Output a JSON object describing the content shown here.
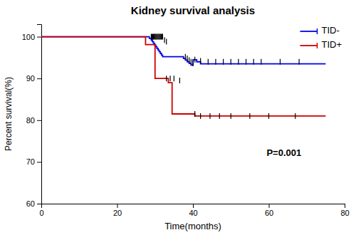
{
  "chart_data": {
    "type": "step",
    "title": "Kidney survival analysis",
    "x_label": "Time(months)",
    "y_label": "Percent survival(%)",
    "xlim": [
      0,
      80
    ],
    "ylim": [
      60,
      103
    ],
    "xticks": [
      0,
      20,
      40,
      60,
      80
    ],
    "yticks": [
      60,
      70,
      80,
      90,
      100
    ],
    "grid": false,
    "legend": "upper right",
    "censor_color": "#000000",
    "series": [
      {
        "name": "TID-",
        "color": "#0000ee",
        "x": [
          0,
          28.5,
          28.5,
          29.0,
          29.0,
          29.3,
          29.3,
          29.6,
          29.6,
          29.9,
          29.9,
          30.2,
          30.2,
          30.5,
          30.5,
          30.8,
          30.8,
          31.1,
          31.1,
          31.4,
          31.4,
          31.7,
          31.7,
          32.0,
          32.0,
          37.5,
          37.5,
          38.0,
          38.0,
          38.5,
          38.5,
          39.0,
          39.0,
          39.5,
          39.5,
          40.0,
          40.0,
          41.0,
          41.0,
          42.0,
          42.0,
          75
        ],
        "values": [
          100,
          100,
          99.6,
          99.6,
          99.2,
          99.2,
          98.8,
          98.8,
          98.4,
          98.4,
          98.0,
          98.0,
          97.6,
          97.6,
          97.2,
          97.2,
          96.8,
          96.8,
          96.4,
          96.4,
          96.0,
          96.0,
          95.6,
          95.6,
          95.2,
          95.2,
          94.8,
          94.8,
          94.4,
          94.4,
          94.0,
          94.0,
          93.6,
          93.6,
          93.2,
          93.2,
          94.5,
          94.5,
          94.0,
          94.0,
          93.5,
          93.5
        ],
        "censor_x": [
          29.0,
          29.2,
          29.4,
          29.6,
          29.8,
          30.0,
          30.2,
          30.4,
          30.6,
          30.8,
          31.0,
          31.2,
          31.4,
          31.6,
          31.8,
          32.0,
          32.5,
          33.0,
          38.0,
          38.5,
          39.0,
          39.5,
          40.0,
          40.5,
          42.0,
          44.0,
          46.0,
          48.0,
          50.0,
          52.0,
          54.0,
          56.0,
          58.0,
          63.0,
          68.0
        ],
        "censor_y": [
          100,
          100,
          100,
          100,
          100,
          100,
          100,
          100,
          100,
          100,
          100,
          100,
          100,
          100,
          100,
          100,
          99.2,
          98.8,
          95.2,
          94.8,
          94.4,
          94.0,
          93.6,
          94.5,
          94.2,
          94.0,
          94.0,
          94.0,
          94.0,
          94.0,
          94.0,
          94.0,
          94.0,
          94.0,
          94.0
        ]
      },
      {
        "name": "TID+",
        "color": "#cc0000",
        "x": [
          0,
          27.5,
          27.5,
          30.0,
          30.0,
          33.5,
          33.5,
          34.5,
          34.5,
          40.5,
          40.5,
          75
        ],
        "values": [
          100,
          100,
          98.1,
          98.1,
          90.0,
          90.0,
          89.0,
          89.0,
          81.5,
          81.5,
          81.0,
          81.0
        ],
        "censor_x": [
          33.0,
          34.0,
          35.0,
          36.5,
          40.5,
          42.0,
          44.5,
          47.0,
          50.0,
          55.0,
          60.0,
          67.0
        ],
        "censor_y": [
          90.0,
          90.0,
          90.0,
          89.5,
          81.5,
          81.0,
          81.0,
          81.0,
          81.0,
          81.0,
          81.0,
          81.0
        ]
      }
    ],
    "annotations": [
      {
        "text": "P=0.001",
        "x": 64,
        "y": 72
      }
    ]
  }
}
